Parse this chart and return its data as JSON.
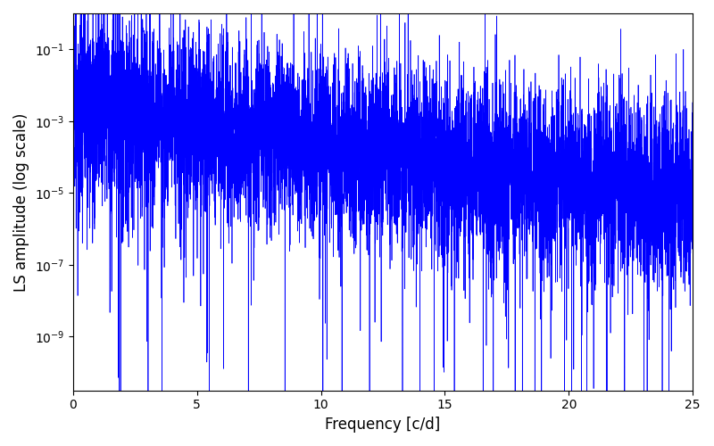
{
  "title": "",
  "xlabel": "Frequency [c/d]",
  "ylabel": "LS amplitude (log scale)",
  "xlim": [
    0,
    25
  ],
  "ylim_log": [
    -10.5,
    0
  ],
  "line_color": "#0000ff",
  "line_width": 0.5,
  "background_color": "#ffffff",
  "freq_max": 25.0,
  "n_points": 8000,
  "seed": 12345,
  "figsize": [
    8.0,
    5.0
  ],
  "dpi": 100
}
